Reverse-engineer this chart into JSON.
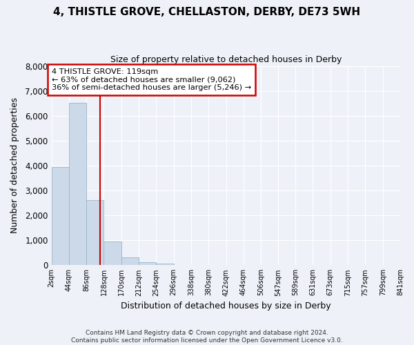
{
  "title": "4, THISTLE GROVE, CHELLASTON, DERBY, DE73 5WH",
  "subtitle": "Size of property relative to detached houses in Derby",
  "xlabel": "Distribution of detached houses by size in Derby",
  "ylabel": "Number of detached properties",
  "bin_edges": [
    2,
    44,
    86,
    128,
    170,
    212,
    254,
    296,
    338,
    380,
    422,
    464,
    506,
    547,
    589,
    631,
    673,
    715,
    757,
    799,
    841
  ],
  "bar_heights": [
    3950,
    6530,
    2600,
    960,
    310,
    110,
    60,
    0,
    0,
    0,
    0,
    0,
    0,
    0,
    0,
    0,
    0,
    0,
    0,
    0
  ],
  "bar_color": "#ccd9e8",
  "bar_edge_color": "#9ab4cc",
  "vline_x": 119,
  "vline_color": "#cc0000",
  "ylim": [
    0,
    8000
  ],
  "yticks": [
    0,
    1000,
    2000,
    3000,
    4000,
    5000,
    6000,
    7000,
    8000
  ],
  "annotation_title": "4 THISTLE GROVE: 119sqm",
  "annotation_line1": "← 63% of detached houses are smaller (9,062)",
  "annotation_line2": "36% of semi-detached houses are larger (5,246) →",
  "annotation_box_color": "#ffffff",
  "annotation_box_edge": "#cc0000",
  "footer_line1": "Contains HM Land Registry data © Crown copyright and database right 2024.",
  "footer_line2": "Contains public sector information licensed under the Open Government Licence v3.0.",
  "background_color": "#eef2f8",
  "grid_color": "#ffffff",
  "tick_labels": [
    "2sqm",
    "44sqm",
    "86sqm",
    "128sqm",
    "170sqm",
    "212sqm",
    "254sqm",
    "296sqm",
    "338sqm",
    "380sqm",
    "422sqm",
    "464sqm",
    "506sqm",
    "547sqm",
    "589sqm",
    "631sqm",
    "673sqm",
    "715sqm",
    "757sqm",
    "799sqm",
    "841sqm"
  ]
}
